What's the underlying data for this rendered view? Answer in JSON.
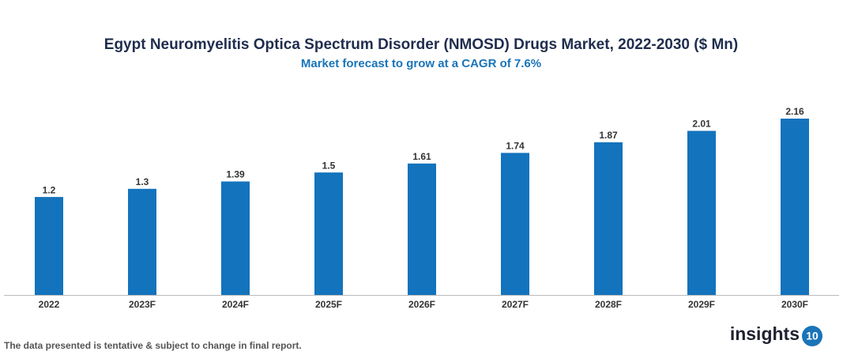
{
  "chart_data": {
    "type": "bar",
    "title": "Egypt Neuromyelitis Optica Spectrum Disorder (NMOSD) Drugs Market, 2022-2030 ($ Mn)",
    "subtitle": "Market forecast to grow at a CAGR of 7.6%",
    "categories": [
      "2022",
      "2023F",
      "2024F",
      "2025F",
      "2026F",
      "2027F",
      "2028F",
      "2029F",
      "2030F"
    ],
    "values": [
      1.2,
      1.3,
      1.39,
      1.5,
      1.61,
      1.74,
      1.87,
      2.01,
      2.16
    ],
    "color": "#1373bd"
  },
  "footer": {
    "note": "The data presented is tentative & subject to change in final report.",
    "logo_text": "insights",
    "logo_number": "10"
  }
}
